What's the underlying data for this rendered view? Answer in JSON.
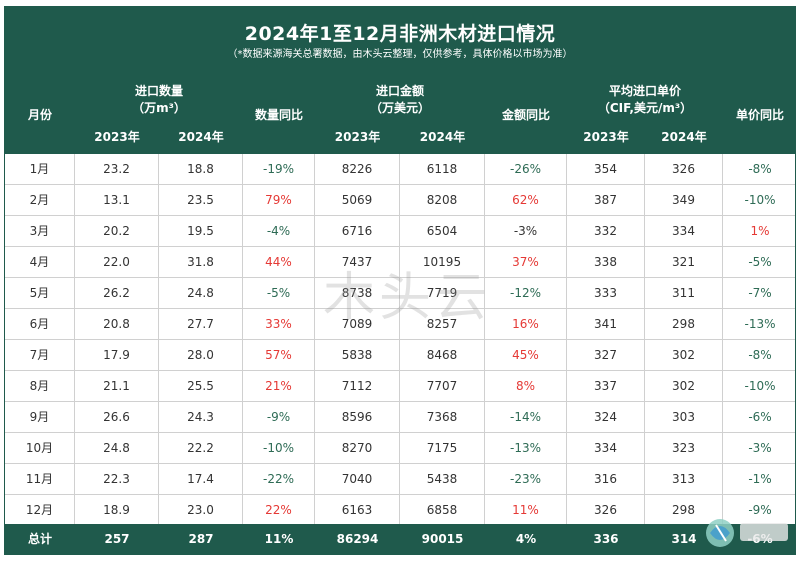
{
  "title": "2024年1至12月非洲木材进口情况",
  "subtitle": "（*数据来源海关总署数据，由木头云整理，仅供参考，具体价格以市场为准）",
  "headers": {
    "month": "月份",
    "qty_line1": "进口数量",
    "qty_line2": "（万m³）",
    "qty_yoy": "数量同比",
    "amt_line1": "进口金额",
    "amt_line2": "（万美元）",
    "amt_yoy": "金额同比",
    "price_line1": "平均进口单价",
    "price_line2": "（CIF,美元/m³）",
    "price_yoy": "单价同比",
    "y2023": "2023年",
    "y2024": "2024年"
  },
  "rows": [
    {
      "month": "1月",
      "q23": "23.2",
      "q24": "18.8",
      "qy": "-19%",
      "a23": "8226",
      "a24": "6118",
      "ay": "-26%",
      "p23": "354",
      "p24": "326",
      "py": "-8%"
    },
    {
      "month": "2月",
      "q23": "13.1",
      "q24": "23.5",
      "qy": "79%",
      "a23": "5069",
      "a24": "8208",
      "ay": "62%",
      "p23": "387",
      "p24": "349",
      "py": "-10%"
    },
    {
      "month": "3月",
      "q23": "20.2",
      "q24": "19.5",
      "qy": "-4%",
      "a23": "6716",
      "a24": "6504",
      "ay": "-3%",
      "p23": "332",
      "p24": "334",
      "py": "1%"
    },
    {
      "month": "4月",
      "q23": "22.0",
      "q24": "31.8",
      "qy": "44%",
      "a23": "7437",
      "a24": "10195",
      "ay": "37%",
      "p23": "338",
      "p24": "321",
      "py": "-5%"
    },
    {
      "month": "5月",
      "q23": "26.2",
      "q24": "24.8",
      "qy": "-5%",
      "a23": "8738",
      "a24": "7719",
      "ay": "-12%",
      "p23": "333",
      "p24": "311",
      "py": "-7%"
    },
    {
      "month": "6月",
      "q23": "20.8",
      "q24": "27.7",
      "qy": "33%",
      "a23": "7089",
      "a24": "8257",
      "ay": "16%",
      "p23": "341",
      "p24": "298",
      "py": "-13%"
    },
    {
      "month": "7月",
      "q23": "17.9",
      "q24": "28.0",
      "qy": "57%",
      "a23": "5838",
      "a24": "8468",
      "ay": "45%",
      "p23": "327",
      "p24": "302",
      "py": "-8%"
    },
    {
      "month": "8月",
      "q23": "21.1",
      "q24": "25.5",
      "qy": "21%",
      "a23": "7112",
      "a24": "7707",
      "ay": "8%",
      "p23": "337",
      "p24": "302",
      "py": "-10%"
    },
    {
      "month": "9月",
      "q23": "26.6",
      "q24": "24.3",
      "qy": "-9%",
      "a23": "8596",
      "a24": "7368",
      "ay": "-14%",
      "p23": "324",
      "p24": "303",
      "py": "-6%"
    },
    {
      "month": "10月",
      "q23": "24.8",
      "q24": "22.2",
      "qy": "-10%",
      "a23": "8270",
      "a24": "7175",
      "ay": "-13%",
      "p23": "334",
      "p24": "323",
      "py": "-3%"
    },
    {
      "month": "11月",
      "q23": "22.3",
      "q24": "17.4",
      "qy": "-22%",
      "a23": "7040",
      "a24": "5438",
      "ay": "-23%",
      "p23": "316",
      "p24": "313",
      "py": "-1%"
    },
    {
      "month": "12月",
      "q23": "18.9",
      "q24": "23.0",
      "qy": "22%",
      "a23": "6163",
      "a24": "6858",
      "ay": "11%",
      "p23": "326",
      "p24": "298",
      "py": "-9%"
    }
  ],
  "total": {
    "month": "总计",
    "q23": "257",
    "q24": "287",
    "qy": "11%",
    "a23": "86294",
    "a24": "90015",
    "ay": "4%",
    "p23": "336",
    "p24": "314",
    "py": "-6%"
  },
  "watermark": "木头云",
  "colors": {
    "header_bg": "#1f5a4c",
    "negative": "#2e6b55",
    "positive": "#e53935"
  }
}
